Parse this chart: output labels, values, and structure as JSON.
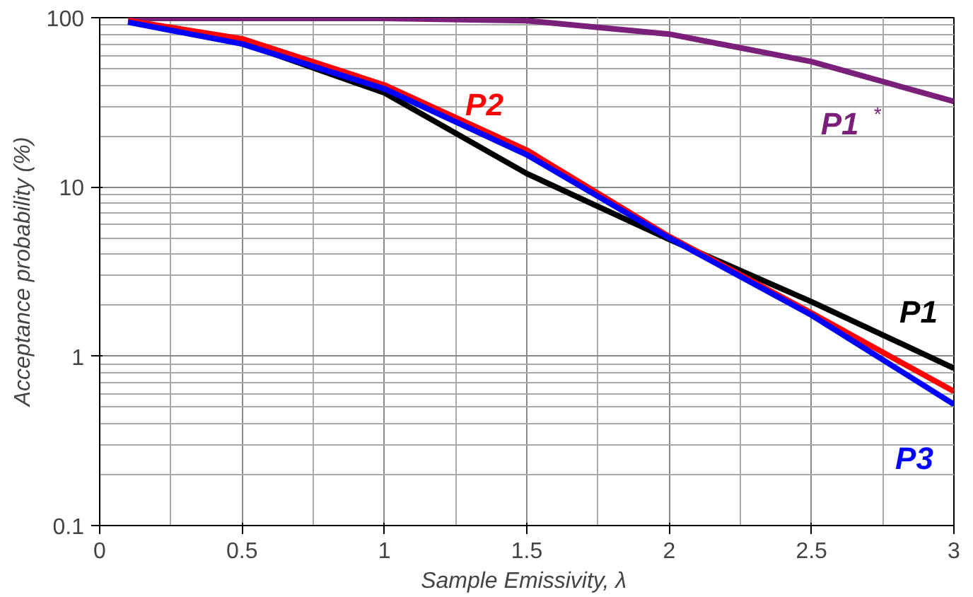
{
  "chart_data": {
    "type": "line",
    "xlabel": "Sample Emissivity,  λ",
    "ylabel": "Acceptance probability (%)",
    "log": "y",
    "grid": true,
    "xlim": [
      0,
      3
    ],
    "ylim": [
      0.1,
      100
    ],
    "xticks": [
      0,
      0.5,
      1,
      1.5,
      2,
      2.5,
      3
    ],
    "yticks": [
      0.1,
      1,
      10,
      100
    ],
    "series": [
      {
        "name": "P1$^{*}$",
        "color": "#7a1f7a",
        "x": [
          0.1,
          0.5,
          1.0,
          1.5,
          2.0,
          2.5,
          3.0
        ],
        "values": [
          99,
          99,
          99,
          96,
          80,
          55,
          32
        ]
      },
      {
        "name": "P1",
        "color": "#000000",
        "x": [
          0.1,
          0.5,
          1.0,
          1.5,
          2.0,
          2.5,
          3.0
        ],
        "values": [
          95,
          71,
          36,
          12,
          4.9,
          2.1,
          0.85
        ]
      },
      {
        "name": "P2",
        "color": "#ff0000",
        "x": [
          0.1,
          0.5,
          1.0,
          1.5,
          2.0,
          2.5,
          3.0
        ],
        "values": [
          96,
          75,
          40,
          16.5,
          5.1,
          1.8,
          0.62
        ]
      },
      {
        "name": "P3",
        "color": "#0000ff",
        "x": [
          0.1,
          0.5,
          1.0,
          1.5,
          2.0,
          2.5,
          3.0
        ],
        "values": [
          94,
          70,
          38,
          15.5,
          5.0,
          1.75,
          0.52
        ]
      }
    ]
  }
}
